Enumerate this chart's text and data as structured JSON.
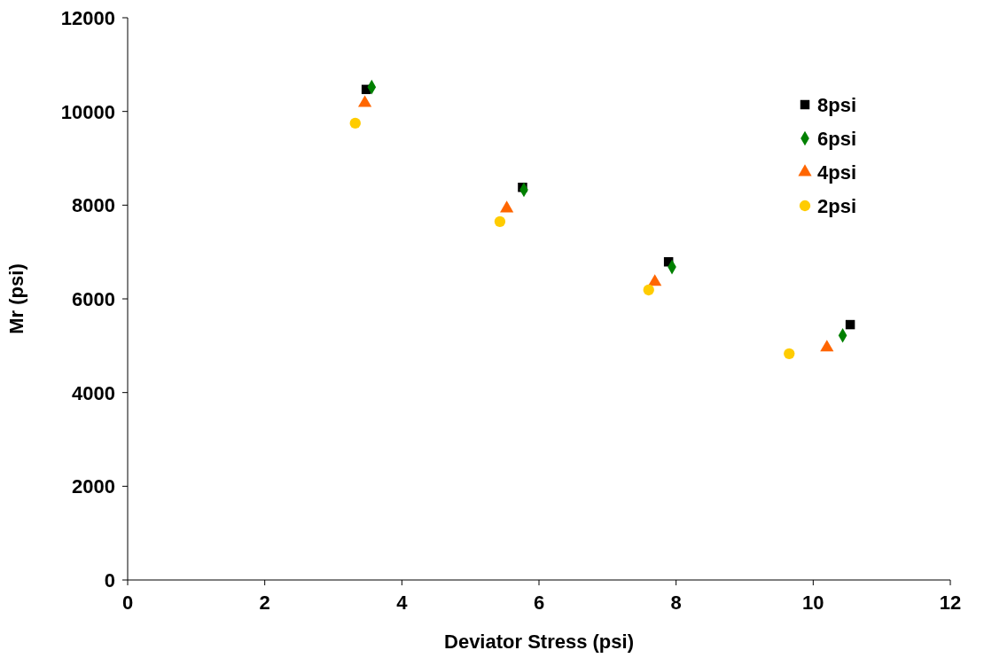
{
  "chart_data": {
    "type": "scatter",
    "xlabel": "Deviator Stress (psi)",
    "ylabel": "Mr (psi)",
    "xlim": [
      0,
      12
    ],
    "xticks": [
      0,
      2,
      4,
      6,
      8,
      10,
      12
    ],
    "ylim": [
      0,
      12000
    ],
    "yticks": [
      0,
      2000,
      4000,
      6000,
      8000,
      10000,
      12000
    ],
    "grid": false,
    "legend": "top right",
    "series": [
      {
        "name": "8psi",
        "color": "#000000",
        "marker": "square",
        "x": [
          3.48,
          5.76,
          7.89,
          10.54
        ],
        "values": [
          10470,
          8380,
          6790,
          5450
        ]
      },
      {
        "name": "6psi",
        "color": "#008000",
        "marker": "diamond",
        "x": [
          3.56,
          5.78,
          7.94,
          10.43
        ],
        "values": [
          10520,
          8330,
          6680,
          5220
        ]
      },
      {
        "name": "4psi",
        "color": "#ff6600",
        "marker": "triangle",
        "x": [
          3.46,
          5.53,
          7.69,
          10.2
        ],
        "values": [
          10180,
          7930,
          6360,
          4960
        ]
      },
      {
        "name": "2psi",
        "color": "#ffcc00",
        "marker": "circle",
        "x": [
          3.32,
          5.43,
          7.6,
          9.65
        ],
        "values": [
          9750,
          7650,
          6190,
          4830
        ]
      }
    ]
  }
}
